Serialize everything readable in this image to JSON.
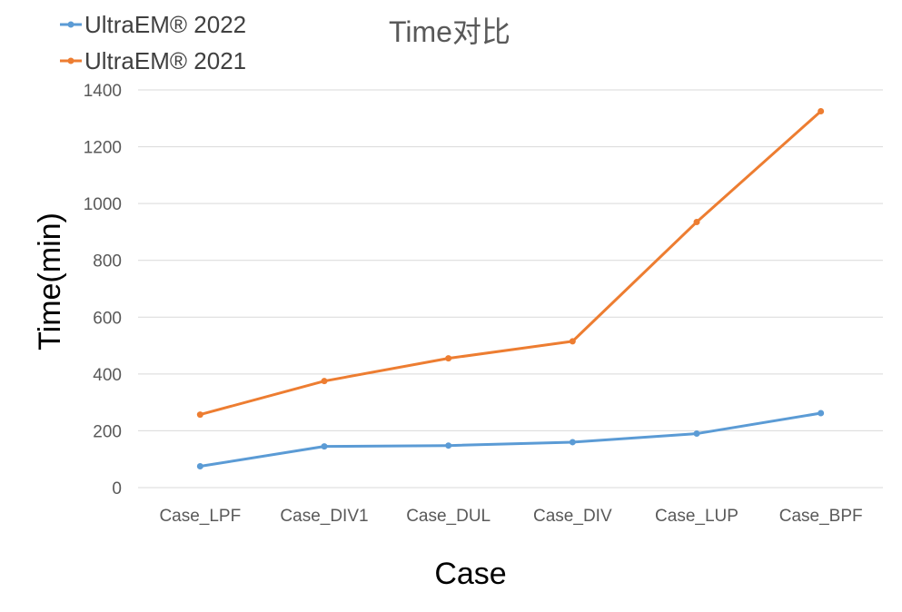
{
  "chart_data": {
    "type": "line",
    "title": "Time对比",
    "xlabel": "Case",
    "ylabel": "Time(min)",
    "categories": [
      "Case_LPF",
      "Case_DIV1",
      "Case_DUL",
      "Case_DIV",
      "Case_LUP",
      "Case_BPF"
    ],
    "ylim": [
      0,
      1400
    ],
    "yticks": [
      0,
      200,
      400,
      600,
      800,
      1000,
      1200,
      1400
    ],
    "grid": true,
    "legend": "top-left",
    "series": [
      {
        "name": "UltraEM® 2022",
        "color": "#5b9bd5",
        "values": [
          75,
          145,
          148,
          160,
          190,
          262
        ]
      },
      {
        "name": "UltraEM® 2021",
        "color": "#ed7d31",
        "values": [
          257,
          375,
          455,
          515,
          935,
          1325
        ]
      }
    ]
  }
}
